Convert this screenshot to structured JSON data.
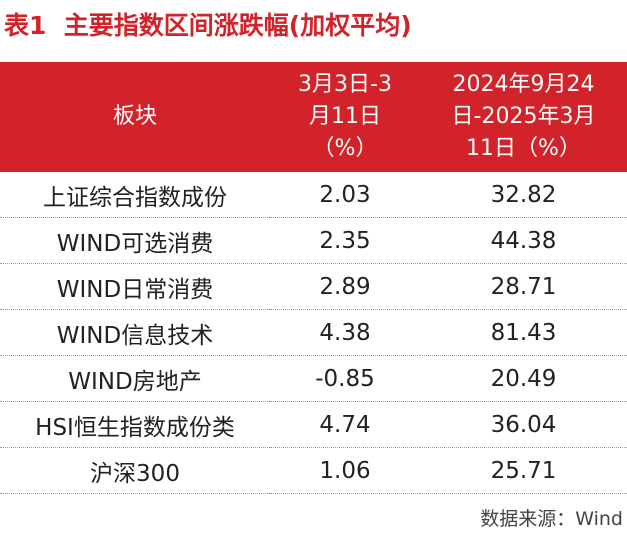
{
  "title": "表1  主要指数区间涨跌幅(加权平均)",
  "table": {
    "header": [
      [
        "板块"
      ],
      [
        "3月3日-3",
        "月11日",
        "（%）"
      ],
      [
        "2024年9月24",
        "日-2025年3月",
        "11日（%）"
      ]
    ],
    "rows": [
      [
        "上证综合指数成份",
        "2.03",
        "32.82"
      ],
      [
        "WIND可选消费",
        "2.35",
        "44.38"
      ],
      [
        "WIND日常消费",
        "2.89",
        "28.71"
      ],
      [
        "WIND信息技术",
        "4.38",
        "81.43"
      ],
      [
        "WIND房地产",
        "-0.85",
        "20.49"
      ],
      [
        "HSI恒生指数成份类",
        "4.74",
        "36.04"
      ],
      [
        "沪深300",
        "1.06",
        "25.71"
      ]
    ]
  },
  "source": "数据来源：Wind"
}
